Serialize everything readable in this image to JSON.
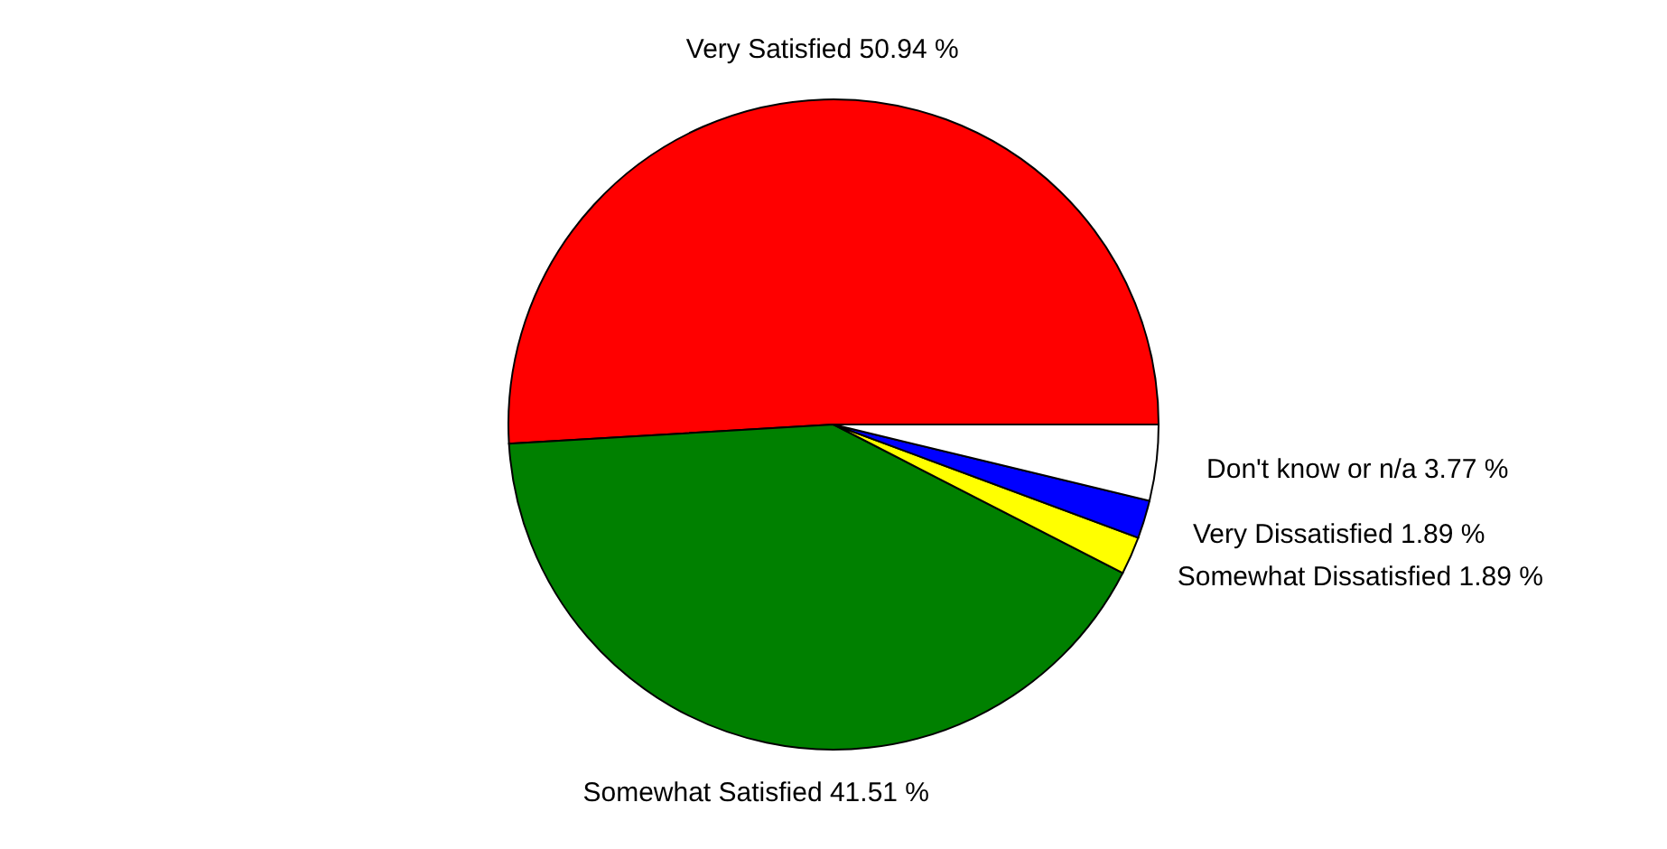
{
  "chart_data": {
    "type": "pie",
    "categories": [
      "Very Satisfied",
      "Somewhat Satisfied",
      "Somewhat Dissatisfied",
      "Very Dissatisfied",
      "Don't know  or n/a"
    ],
    "values": [
      50.94,
      41.51,
      1.89,
      1.89,
      3.77
    ],
    "colors": [
      "#ff0000",
      "#008000",
      "#ffff00",
      "#0000ff",
      "#ffffff"
    ],
    "value_labels": [
      "50.94 %",
      "41.51 %",
      "1.89 %",
      "1.89 %",
      "3.77 %"
    ]
  }
}
